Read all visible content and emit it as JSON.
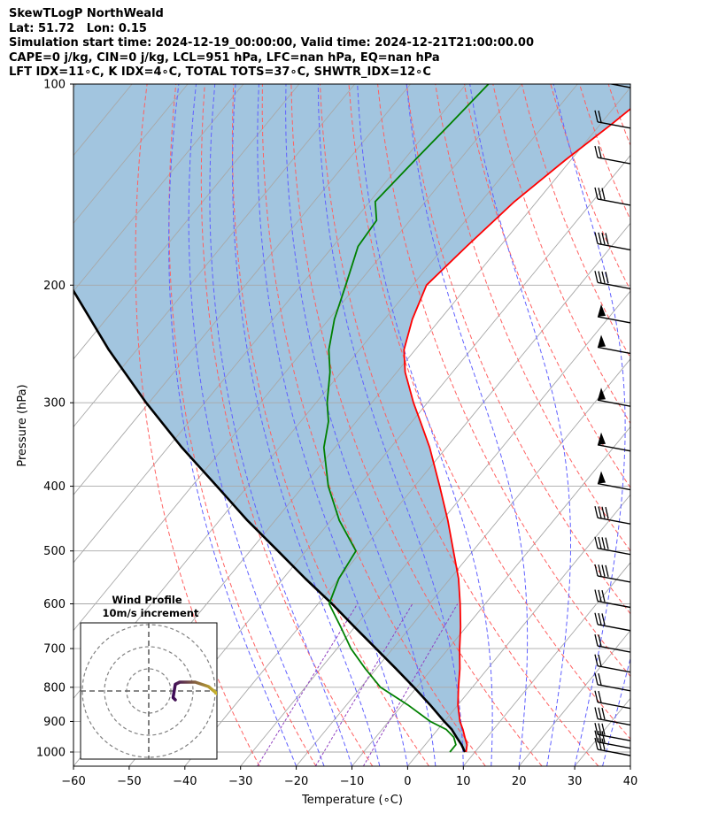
{
  "header": {
    "line1": "SkewTLogP NorthWeald",
    "line2": "Lat: 51.72   Lon: 0.15",
    "line3": "Simulation start time: 2024-12-19_00:00:00, Valid time: 2024-12-21T21:00:00.00",
    "line4": "CAPE=0 j/kg, CIN=0 j/kg, LCL=951 hPa, LFC=nan hPa, EQ=nan hPa",
    "line5": "LFT IDX=11∘C, K IDX=4∘C, TOTAL TOTS=37∘C, SHWTR_IDX=12∘C"
  },
  "colors": {
    "temperature": "#ff0000",
    "dewpoint": "#008000",
    "parcel": "#000000",
    "cape_fill": "#a2c5df",
    "dry_adiabat": "#ff6060",
    "moist_adiabat": "#6060ff",
    "mixing_ratio": "#9040c0",
    "isotherm": "#a8a8a8",
    "hodograph_start": "#3d0a58",
    "hodograph_end": "#f2e51d"
  },
  "chart_data": {
    "type": "line",
    "title": "",
    "xlabel": "Temperature (∘C)",
    "ylabel": "Pressure (hPa)",
    "xlim": [
      -60,
      40
    ],
    "ylim": [
      1050,
      100
    ],
    "y_scale": "log",
    "skew": "skew-T log-p, isotherms slanted",
    "x_ticks": [
      "−60",
      "−50",
      "−40",
      "−30",
      "−20",
      "−10",
      "0",
      "10",
      "20",
      "30",
      "40"
    ],
    "y_ticks": [
      "100",
      "200",
      "300",
      "400",
      "500",
      "600",
      "700",
      "800",
      "900",
      "1000"
    ],
    "grid": true,
    "series": [
      {
        "role": "temperature",
        "pressure": [
          1000,
          975,
          950,
          925,
          900,
          850,
          800,
          750,
          700,
          650,
          600,
          550,
          500,
          450,
          400,
          350,
          320,
          300,
          270,
          250,
          225,
          200,
          175,
          150,
          130,
          115,
          100
        ],
        "values": [
          8.4,
          7.5,
          6.0,
          4.5,
          2.8,
          0.0,
          -2.5,
          -5.0,
          -8.0,
          -11.0,
          -14.5,
          -18.5,
          -23.5,
          -29.0,
          -35.5,
          -43.0,
          -48.5,
          -52.5,
          -58.5,
          -62.0,
          -65.0,
          -67.5,
          -66.0,
          -64.0,
          -61.0,
          -58.0,
          -55.0
        ]
      },
      {
        "role": "dewpoint",
        "pressure": [
          1000,
          975,
          950,
          925,
          900,
          850,
          800,
          750,
          700,
          650,
          600,
          550,
          500,
          450,
          400,
          350,
          320,
          300,
          270,
          250,
          225,
          200,
          175,
          160,
          150,
          130,
          115,
          100
        ],
        "values": [
          5.5,
          5.5,
          4.0,
          1.5,
          -2.5,
          -9.0,
          -16.5,
          -22.0,
          -27.5,
          -32.5,
          -38.0,
          -40.0,
          -41.0,
          -48.5,
          -55.5,
          -62.0,
          -65.0,
          -68.0,
          -72.0,
          -75.5,
          -79.0,
          -82.0,
          -85.5,
          -86.0,
          -89.0,
          -88.0,
          -87.0,
          -86.0
        ]
      },
      {
        "role": "parcel",
        "pressure": [
          1000,
          975,
          950,
          925,
          900,
          850,
          800,
          750,
          700,
          650,
          600,
          550,
          500,
          450,
          400,
          350,
          300,
          250,
          200,
          150,
          100
        ],
        "values": [
          8.2,
          6.5,
          4.5,
          2.5,
          0.0,
          -5.0,
          -10.5,
          -16.5,
          -23.0,
          -30.0,
          -37.5,
          -46.0,
          -55.0,
          -65.0,
          -75.5,
          -87.5,
          -100.5,
          -115.0,
          -131.5,
          -151.0,
          -176.5
        ]
      }
    ],
    "wind_barbs": [
      {
        "pressure": 1000,
        "flag": false,
        "barbs": 3
      },
      {
        "pressure": 975,
        "flag": false,
        "barbs": 3
      },
      {
        "pressure": 950,
        "flag": false,
        "barbs": 3
      },
      {
        "pressure": 900,
        "flag": false,
        "barbs": 3
      },
      {
        "pressure": 850,
        "flag": false,
        "barbs": 2
      },
      {
        "pressure": 800,
        "flag": false,
        "barbs": 2
      },
      {
        "pressure": 750,
        "flag": false,
        "barbs": 2
      },
      {
        "pressure": 700,
        "flag": false,
        "barbs": 2
      },
      {
        "pressure": 650,
        "flag": false,
        "barbs": 3
      },
      {
        "pressure": 600,
        "flag": false,
        "barbs": 3
      },
      {
        "pressure": 550,
        "flag": false,
        "barbs": 4
      },
      {
        "pressure": 500,
        "flag": false,
        "barbs": 4
      },
      {
        "pressure": 450,
        "flag": false,
        "barbs": 4
      },
      {
        "pressure": 400,
        "flag": true,
        "barbs": 0
      },
      {
        "pressure": 350,
        "flag": true,
        "barbs": 0
      },
      {
        "pressure": 300,
        "flag": true,
        "barbs": 0
      },
      {
        "pressure": 250,
        "flag": true,
        "barbs": 0
      },
      {
        "pressure": 225,
        "flag": true,
        "barbs": 0
      },
      {
        "pressure": 200,
        "flag": false,
        "barbs": 4
      },
      {
        "pressure": 175,
        "flag": false,
        "barbs": 4
      },
      {
        "pressure": 150,
        "flag": false,
        "barbs": 3
      },
      {
        "pressure": 130,
        "flag": false,
        "barbs": 2
      },
      {
        "pressure": 115,
        "flag": false,
        "barbs": 2
      },
      {
        "pressure": 100,
        "flag": false,
        "barbs": 2
      }
    ],
    "hodograph": {
      "title": "Wind Profile",
      "subtitle": "10m/s increment",
      "ring_step_ms": 10,
      "rings": 3,
      "u": [
        36,
        33,
        27,
        21,
        18,
        14,
        12,
        11,
        12
      ],
      "v": [
        -4,
        -3,
        2,
        4,
        4,
        4,
        3,
        -3,
        -4
      ]
    }
  }
}
